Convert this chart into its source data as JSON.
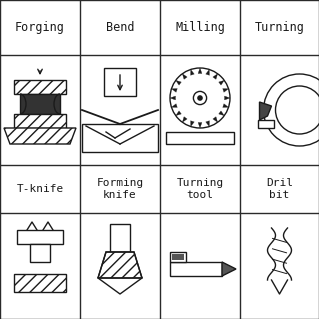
{
  "bg_color": "#ffffff",
  "border_color": "#2a2a2a",
  "text_color": "#1a1a1a",
  "font_family": "monospace",
  "headers": [
    "Forging",
    "Bend",
    "Milling",
    "Turning"
  ],
  "labels_row2": [
    "T-knife",
    "Forming\nknife",
    "Turning\ntool",
    "Dril\nbit"
  ],
  "header_fontsize": 8.5,
  "label_fontsize": 8,
  "line_width": 1.0
}
